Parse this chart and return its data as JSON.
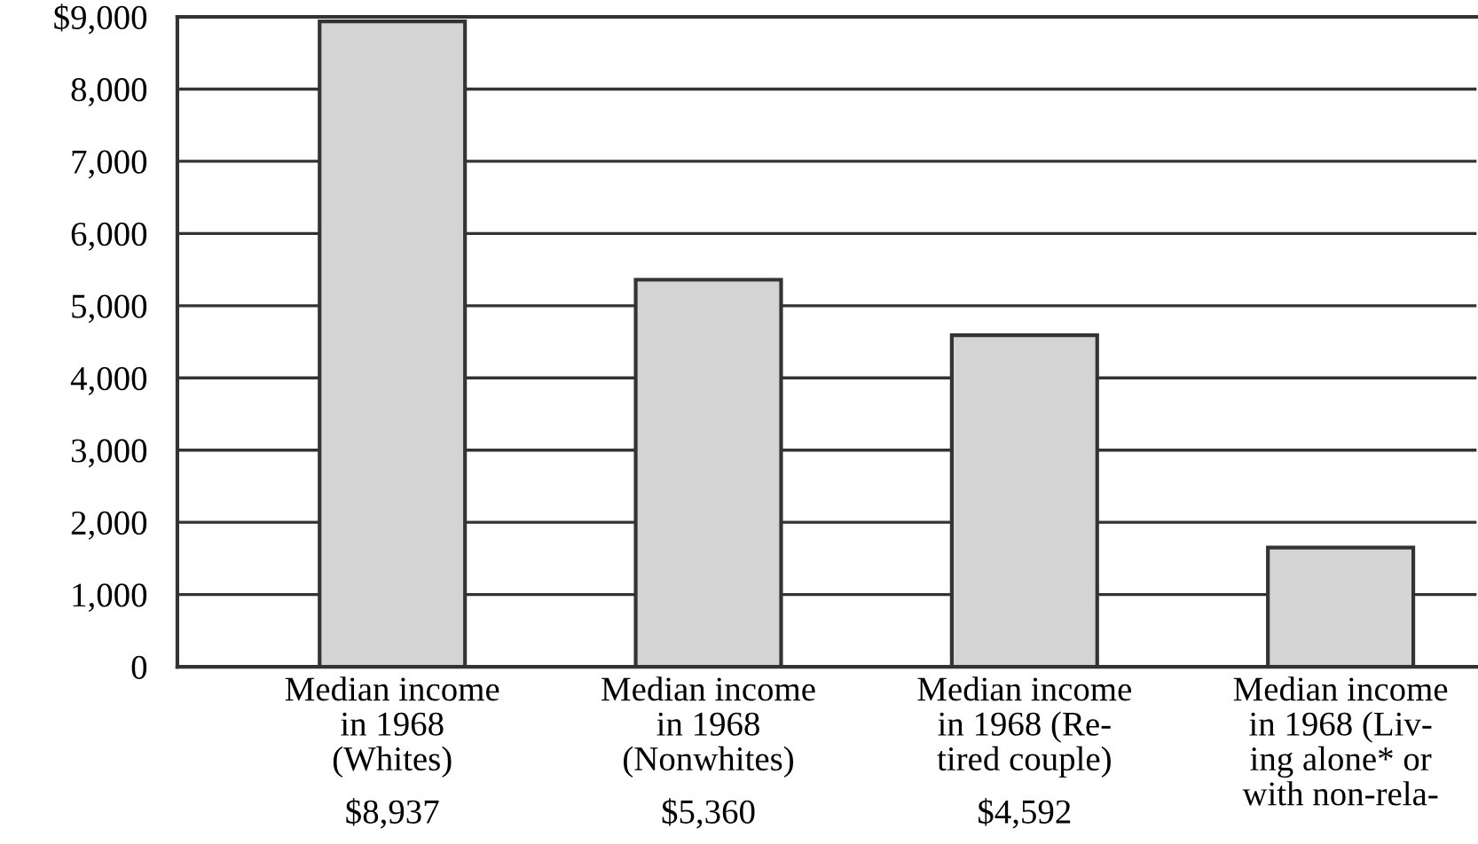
{
  "chart_data": {
    "type": "bar",
    "categories": [
      "Median income\nin 1968\n(Whites)",
      "Median income\nin 1968\n(Nonwhites)",
      "Median income\nin 1968 (Re-\ntired couple)",
      "Median income\nin 1968 (Liv-\ning alone* or\nwith non-rela-"
    ],
    "values": [
      8937,
      5360,
      4592,
      1650
    ],
    "value_labels": [
      "$8,937",
      "$5,360",
      "$4,592",
      null
    ],
    "color": "#d4d4d4",
    "ylim": [
      0,
      9000
    ],
    "yticks": [
      0,
      {
        "value": 1000,
        "label": "1,000"
      },
      {
        "value": 2000,
        "label": "2,000"
      },
      {
        "value": 3000,
        "label": "3,000"
      },
      {
        "value": 4000,
        "label": "4,000"
      },
      {
        "value": 5000,
        "label": "5,000"
      },
      {
        "value": 6000,
        "label": "6,000"
      },
      {
        "value": 7000,
        "label": "7,000"
      },
      {
        "value": 8000,
        "label": "8,000"
      },
      {
        "value": 9000,
        "label": "$9,000"
      }
    ],
    "grid": "y"
  }
}
